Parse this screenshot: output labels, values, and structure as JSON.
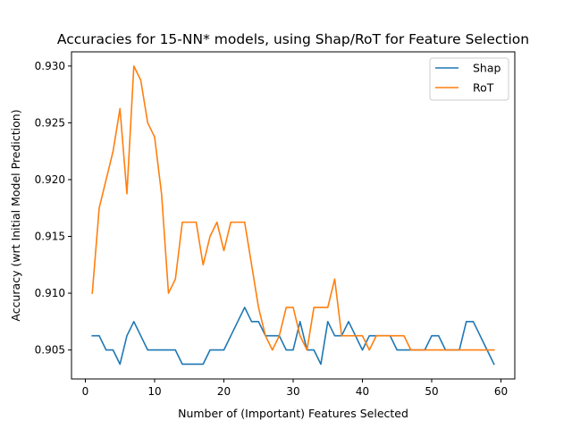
{
  "chart_data": {
    "type": "line",
    "title": "Accuracies for 15-NN* models, using Shap/RoT for Feature Selection",
    "xlabel": "Number of (Important) Features Selected",
    "ylabel": "Accuracy (wrt Initial Model Prediction)",
    "xlim": [
      -2,
      62
    ],
    "ylim": [
      0.90245,
      0.93125
    ],
    "xticks": [
      0,
      10,
      20,
      30,
      40,
      50,
      60
    ],
    "yticks": [
      0.905,
      0.91,
      0.915,
      0.92,
      0.925,
      0.93
    ],
    "ytick_labels": [
      "0.905",
      "0.910",
      "0.915",
      "0.920",
      "0.925",
      "0.930"
    ],
    "grid": false,
    "legend_position": "top-right",
    "x": [
      1,
      2,
      3,
      4,
      5,
      6,
      7,
      8,
      9,
      10,
      11,
      12,
      13,
      14,
      15,
      16,
      17,
      18,
      19,
      20,
      21,
      22,
      23,
      24,
      25,
      26,
      27,
      28,
      29,
      30,
      31,
      32,
      33,
      34,
      35,
      36,
      37,
      38,
      39,
      40,
      41,
      42,
      43,
      44,
      45,
      46,
      47,
      48,
      49,
      50,
      51,
      52,
      53,
      54,
      55,
      56,
      57,
      58,
      59
    ],
    "series": [
      {
        "name": "Shap",
        "color": "#1f77b4",
        "values": [
          0.90625,
          0.90625,
          0.905,
          0.905,
          0.90375,
          0.90625,
          0.9075,
          0.90625,
          0.905,
          0.905,
          0.905,
          0.905,
          0.905,
          0.90375,
          0.90375,
          0.90375,
          0.90375,
          0.905,
          0.905,
          0.905,
          0.90625,
          0.9075,
          0.90875,
          0.9075,
          0.9075,
          0.90625,
          0.90625,
          0.90625,
          0.905,
          0.905,
          0.9075,
          0.905,
          0.905,
          0.90375,
          0.9075,
          0.90625,
          0.90625,
          0.9075,
          0.90625,
          0.905,
          0.90625,
          0.90625,
          0.90625,
          0.90625,
          0.905,
          0.905,
          0.905,
          0.905,
          0.905,
          0.90625,
          0.90625,
          0.905,
          0.905,
          0.905,
          0.9075,
          0.9075,
          0.90625,
          0.905,
          0.90375
        ]
      },
      {
        "name": "RoT",
        "color": "#ff7f0e",
        "values": [
          0.91,
          0.9175,
          0.92,
          0.9225,
          0.92625,
          0.91875,
          0.93,
          0.92875,
          0.925,
          0.92375,
          0.91875,
          0.91,
          0.91125,
          0.91625,
          0.91625,
          0.91625,
          0.9125,
          0.915,
          0.91625,
          0.91375,
          0.91625,
          0.91625,
          0.91625,
          0.9125,
          0.90875,
          0.90625,
          0.905,
          0.90625,
          0.90875,
          0.90875,
          0.90625,
          0.905,
          0.90875,
          0.90875,
          0.90875,
          0.91125,
          0.90625,
          0.90625,
          0.90625,
          0.90625,
          0.905,
          0.90625,
          0.90625,
          0.90625,
          0.90625,
          0.90625,
          0.905,
          0.905,
          0.905,
          0.905,
          0.905,
          0.905,
          0.905,
          0.905,
          0.905,
          0.905,
          0.905,
          0.905,
          0.905
        ]
      }
    ]
  }
}
